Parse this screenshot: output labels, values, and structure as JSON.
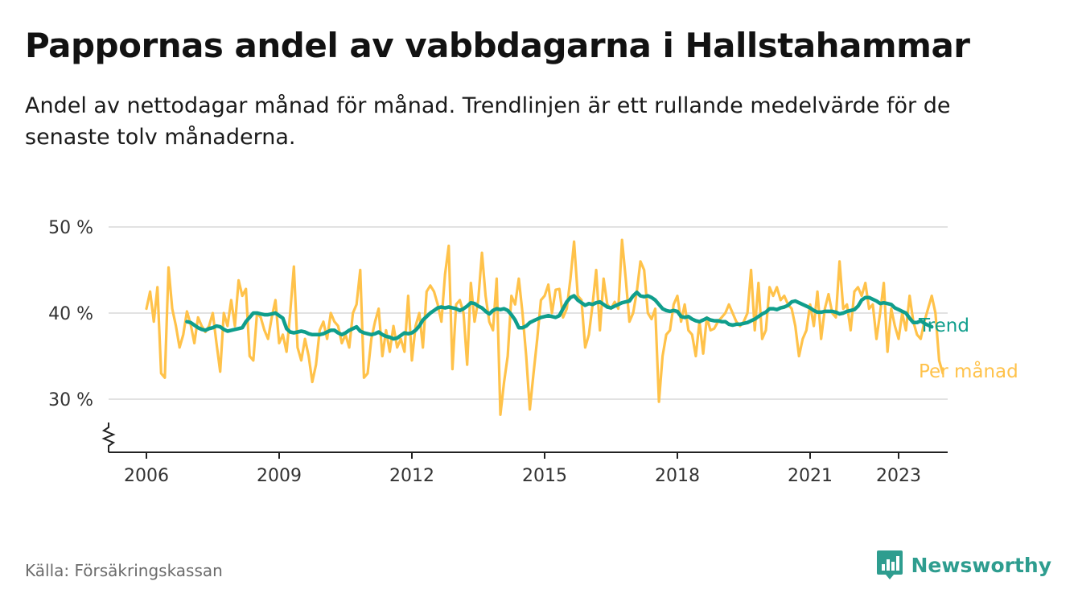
{
  "title": "Pappornas andel av vabbdagarna i Hallstahammar",
  "subtitle": "Andel av nettodagar månad för månad. Trendlinjen är ett rullande medelvärde för de senaste tolv månaderna.",
  "source": "Källa: Försäkringskassan",
  "brand": "Newsworthy",
  "colors": {
    "monthly": "#ffc24a",
    "trend": "#0f9e8c",
    "grid": "#d9d9d9",
    "axis": "#222222",
    "brand": "#2e9d8f"
  },
  "chart_data": {
    "type": "line",
    "x_unit": "year (fractional, monthly points from 2006-01)",
    "ylim": [
      25,
      50
    ],
    "y_ticks": [
      {
        "value": 30,
        "label": "30 %"
      },
      {
        "value": 40,
        "label": "40 %"
      },
      {
        "value": 50,
        "label": "50 %"
      }
    ],
    "x_ticks": [
      {
        "value": 2006,
        "label": "2006"
      },
      {
        "value": 2009,
        "label": "2009"
      },
      {
        "value": 2012,
        "label": "2012"
      },
      {
        "value": 2015,
        "label": "2015"
      },
      {
        "value": 2018,
        "label": "2018"
      },
      {
        "value": 2021,
        "label": "2021"
      },
      {
        "value": 2023,
        "label": "2023"
      }
    ],
    "xlim": [
      2005.5,
      2023.9
    ],
    "axis_break": true,
    "grid": true,
    "series": [
      {
        "name": "Per månad",
        "start_year": 2006.0,
        "step": 0.08333,
        "values": [
          40.5,
          42.5,
          39,
          43,
          33,
          32.5,
          45.3,
          40.5,
          38.5,
          36,
          37.5,
          40.2,
          38.7,
          36.5,
          39.5,
          38.5,
          37.8,
          38.5,
          40,
          36.5,
          33.2,
          40,
          38.5,
          41.5,
          38.5,
          43.8,
          42,
          42.8,
          35,
          34.5,
          40,
          39.5,
          38,
          37,
          39.5,
          41.5,
          36.5,
          37.5,
          35.5,
          40,
          45.4,
          36,
          34.5,
          37,
          35,
          32,
          34,
          38,
          39,
          37,
          40,
          39,
          38.5,
          36.5,
          37.5,
          36,
          40,
          41,
          45,
          32.5,
          33,
          37,
          39,
          40.5,
          35,
          38,
          35.5,
          38.5,
          36,
          37,
          35.5,
          42,
          34.5,
          38.5,
          40,
          36,
          42.5,
          43.2,
          42.5,
          41,
          39,
          44.5,
          47.8,
          33.5,
          41,
          41.5,
          40,
          34,
          43.5,
          39,
          41.5,
          47,
          42,
          39,
          38,
          44,
          28.2,
          32,
          35,
          42,
          41,
          44,
          40,
          35,
          28.8,
          33,
          37,
          41.5,
          42,
          43.3,
          40,
          42.7,
          42.8,
          39.5,
          40.5,
          44,
          48.3,
          42,
          41.5,
          36,
          37.5,
          41,
          45,
          38,
          44,
          41,
          40.5,
          41.3,
          40.5,
          48.5,
          44,
          39,
          40,
          42.5,
          46,
          45,
          40,
          39.3,
          40.5,
          29.7,
          35,
          37.5,
          38,
          41,
          42,
          39,
          41,
          38,
          37.5,
          35,
          39,
          35.3,
          39.5,
          38,
          38.2,
          39,
          39.5,
          40,
          41,
          40,
          39,
          38.5,
          39,
          40,
          45,
          38,
          43.5,
          37,
          38,
          43,
          42,
          43,
          41.5,
          42,
          41,
          40.5,
          38.5,
          35,
          37,
          38,
          41,
          38.5,
          42.5,
          37,
          40.5,
          42.2,
          40,
          39.5,
          46,
          40.5,
          41,
          38,
          42.5,
          43,
          42,
          43.5,
          40.5,
          41,
          37,
          40,
          43.5,
          35.5,
          40.5,
          38.5,
          37,
          40,
          38,
          42,
          39,
          37.5,
          37,
          39,
          40.5,
          42,
          40,
          34.5,
          33
        ]
      },
      {
        "name": "Trend",
        "start_year": 2006.9167,
        "step": 0.08333,
        "values": [
          39,
          38.9,
          38.6,
          38.3,
          38.1,
          38,
          38.2,
          38.3,
          38.5,
          38.4,
          38.1,
          37.9,
          38,
          38.1,
          38.2,
          38.3,
          39,
          39.5,
          40,
          40,
          39.9,
          39.8,
          39.8,
          39.9,
          40,
          39.7,
          39.4,
          38.2,
          37.8,
          37.7,
          37.8,
          37.9,
          37.8,
          37.6,
          37.5,
          37.5,
          37.5,
          37.6,
          37.8,
          38,
          38,
          37.7,
          37.5,
          37.7,
          38,
          38.2,
          38.4,
          37.9,
          37.7,
          37.6,
          37.5,
          37.6,
          37.8,
          37.5,
          37.3,
          37.2,
          37,
          37.1,
          37.4,
          37.7,
          37.6,
          37.7,
          38,
          38.5,
          39.2,
          39.6,
          40,
          40.3,
          40.6,
          40.7,
          40.6,
          40.7,
          40.6,
          40.5,
          40.3,
          40.5,
          40.8,
          41.2,
          41.1,
          40.8,
          40.6,
          40.2,
          39.9,
          40.3,
          40.5,
          40.4,
          40.5,
          40.3,
          39.8,
          39.2,
          38.3,
          38.3,
          38.5,
          38.9,
          39.1,
          39.3,
          39.5,
          39.6,
          39.7,
          39.6,
          39.5,
          39.7,
          40.5,
          41.3,
          41.8,
          42,
          41.5,
          41.2,
          40.9,
          41.1,
          41,
          41.2,
          41.3,
          41,
          40.7,
          40.6,
          40.8,
          41,
          41.2,
          41.3,
          41.4,
          42,
          42.4,
          42,
          41.9,
          42,
          41.8,
          41.5,
          41,
          40.5,
          40.3,
          40.2,
          40.3,
          40.2,
          39.6,
          39.5,
          39.6,
          39.3,
          39.1,
          39,
          39.2,
          39.4,
          39.2,
          39.1,
          39.1,
          39,
          39,
          38.7,
          38.6,
          38.7,
          38.7,
          38.8,
          38.9,
          39.1,
          39.3,
          39.6,
          39.9,
          40.1,
          40.5,
          40.5,
          40.4,
          40.6,
          40.7,
          40.9,
          41.3,
          41.4,
          41.2,
          41,
          40.8,
          40.6,
          40.3,
          40.1,
          40.1,
          40.2,
          40.2,
          40.2,
          40.1,
          39.9,
          40,
          40.2,
          40.3,
          40.4,
          40.8,
          41.5,
          41.8,
          41.8,
          41.6,
          41.4,
          41.1,
          41.2,
          41.1,
          41,
          40.6,
          40.4,
          40.2,
          40,
          39.4,
          38.9,
          38.9,
          39.1,
          38.8,
          38.6,
          38.4
        ]
      }
    ]
  }
}
